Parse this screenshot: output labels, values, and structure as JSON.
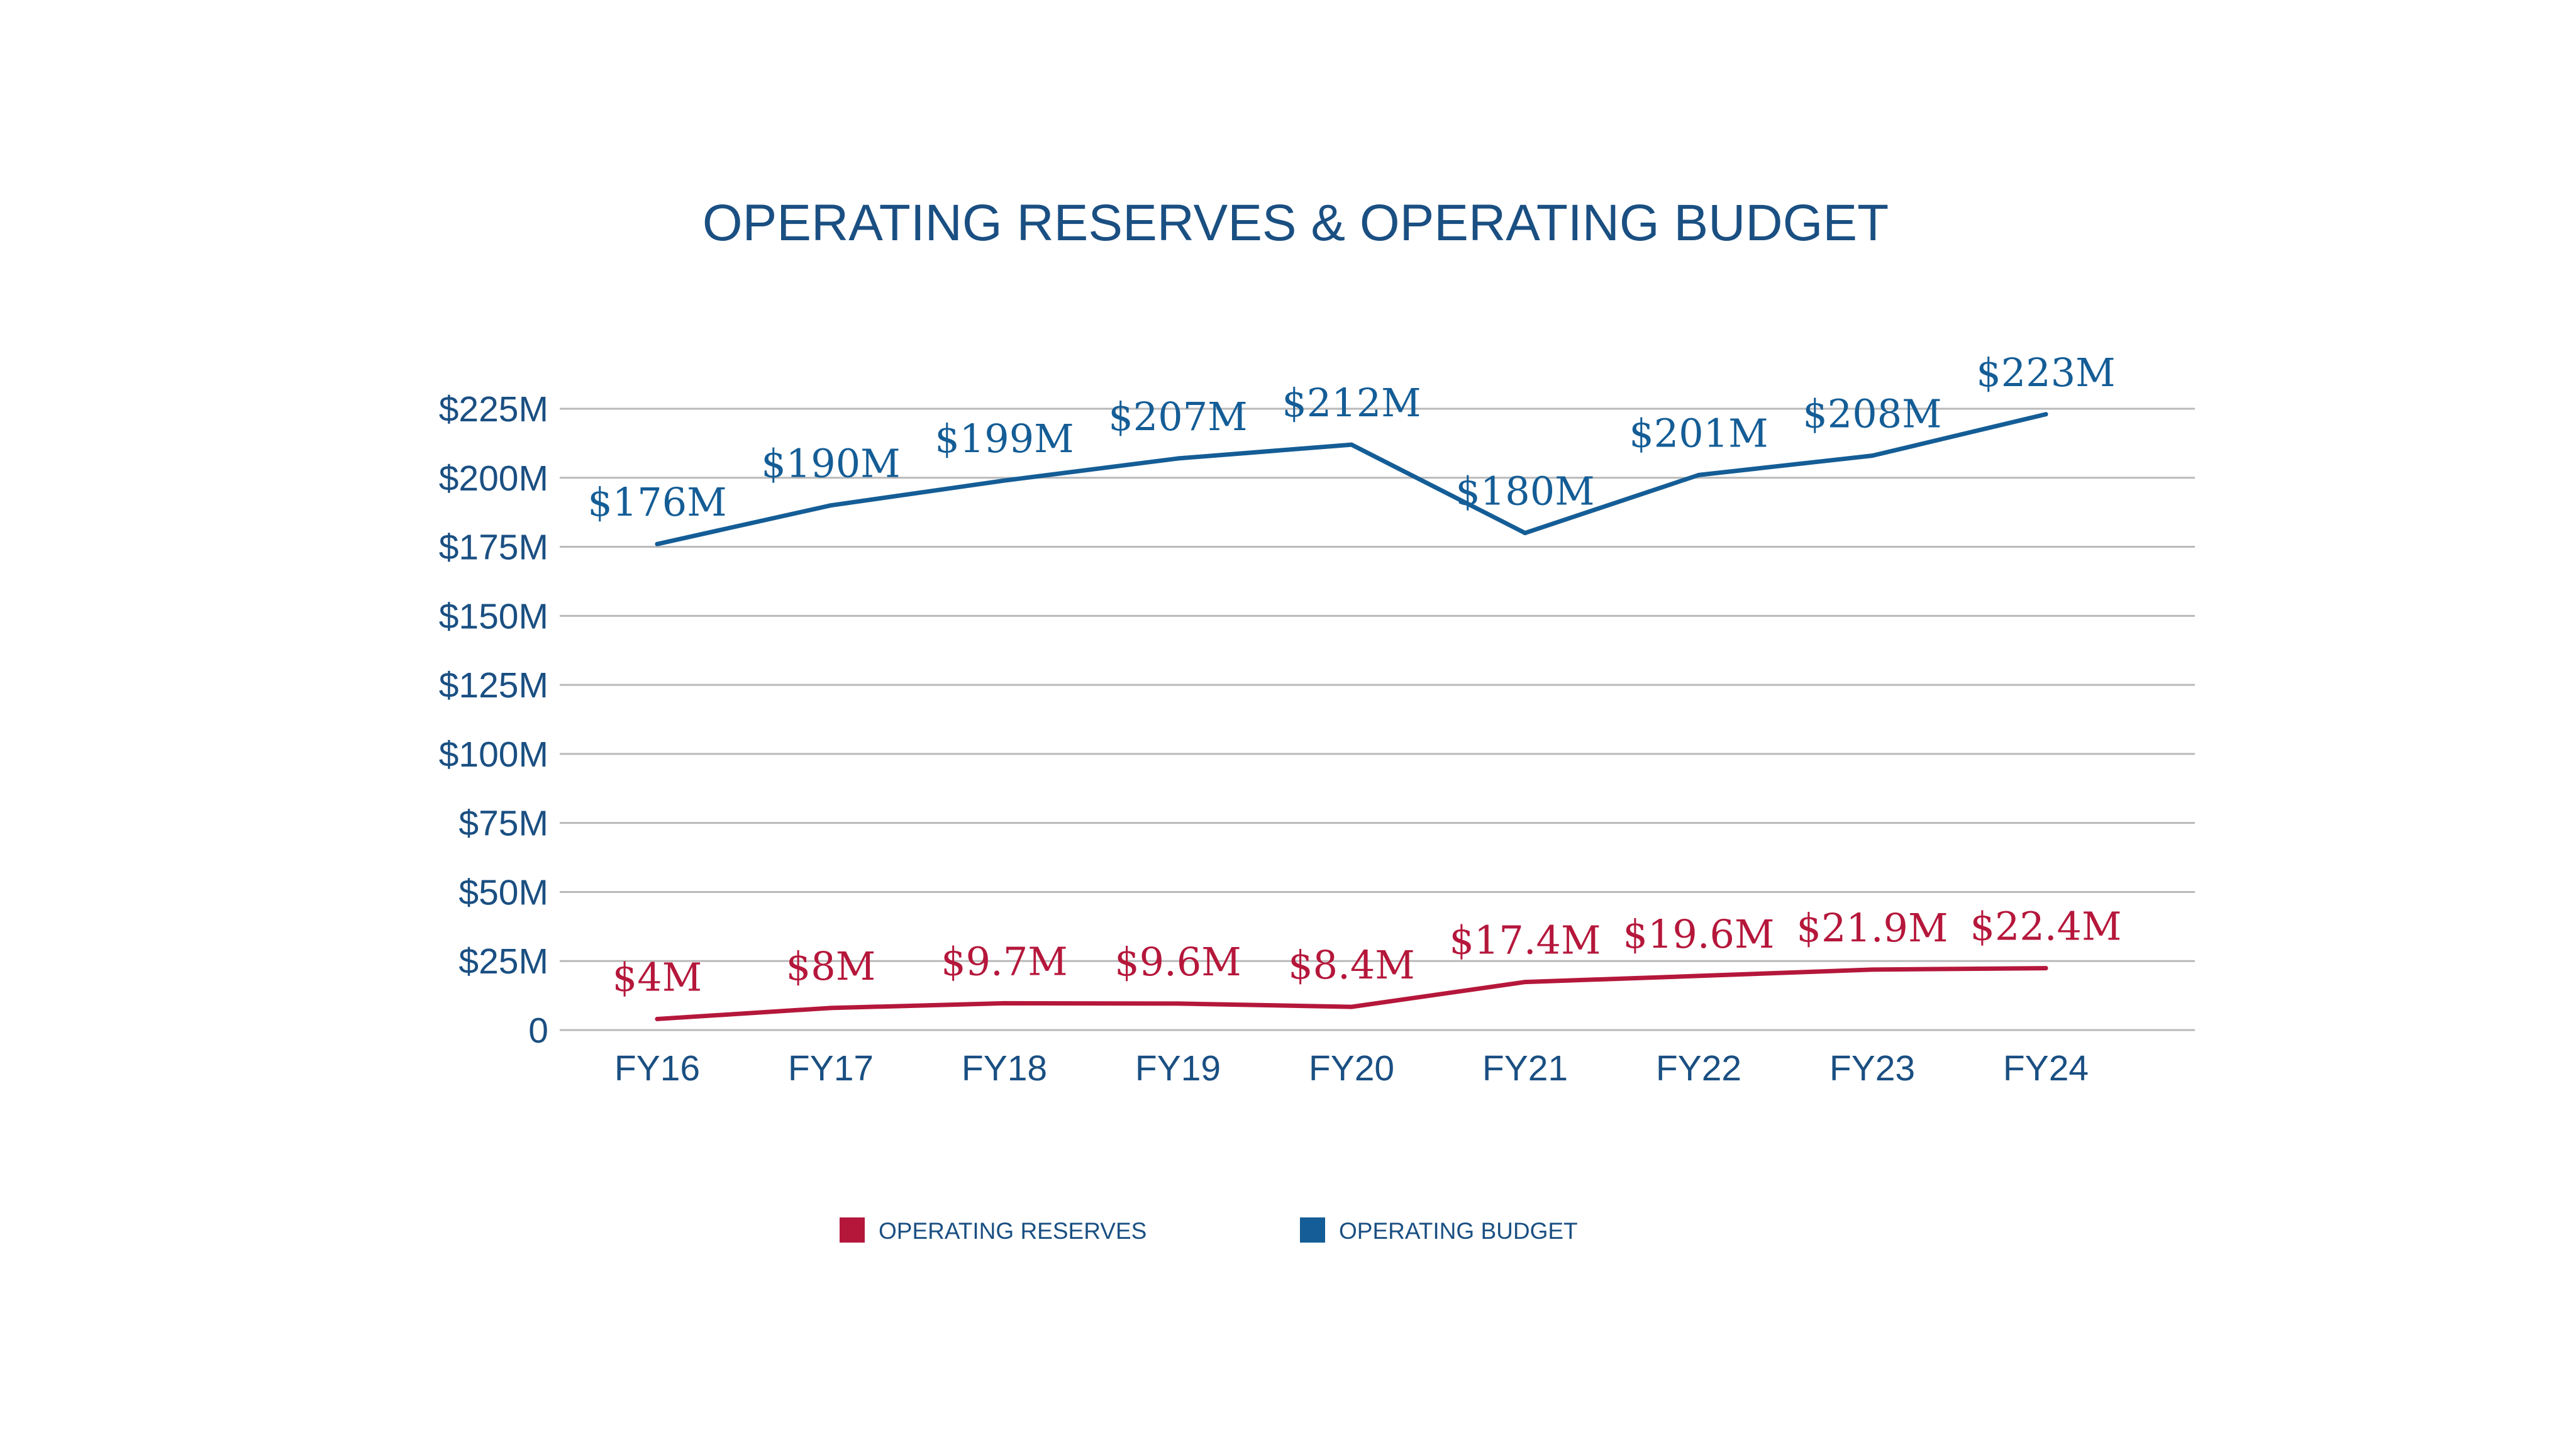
{
  "colors": {
    "operating_reserves": "#b5173b",
    "operating_budget": "#145d96",
    "text": "#1a4f82",
    "grid": "#b9b9b9"
  },
  "chart_data": {
    "type": "line",
    "title": "OPERATING RESERVES & OPERATING BUDGET",
    "categories": [
      "FY16",
      "FY17",
      "FY18",
      "FY19",
      "FY20",
      "FY21",
      "FY22",
      "FY23",
      "FY24"
    ],
    "y_ticks": [
      {
        "value": 0,
        "label": "0"
      },
      {
        "value": 25,
        "label": "$25M"
      },
      {
        "value": 50,
        "label": "$50M"
      },
      {
        "value": 75,
        "label": "$75M"
      },
      {
        "value": 100,
        "label": "$100M"
      },
      {
        "value": 125,
        "label": "$125M"
      },
      {
        "value": 150,
        "label": "$150M"
      },
      {
        "value": 175,
        "label": "$175M"
      },
      {
        "value": 200,
        "label": "$200M"
      },
      {
        "value": 225,
        "label": "$225M"
      }
    ],
    "ylim": [
      0,
      225
    ],
    "grid": true,
    "legend_position": "bottom",
    "series": [
      {
        "key": "operating_reserves",
        "name": "OPERATING RESERVES",
        "values": [
          4,
          8,
          9.7,
          9.6,
          8.4,
          17.4,
          19.6,
          21.9,
          22.4
        ],
        "labels": [
          "$4M",
          "$8M",
          "$9.7M",
          "$9.6M",
          "$8.4M",
          "$17.4M",
          "$19.6M",
          "$21.9M",
          "$22.4M"
        ]
      },
      {
        "key": "operating_budget",
        "name": "OPERATING BUDGET",
        "values": [
          176,
          190,
          199,
          207,
          212,
          180,
          201,
          208,
          223
        ],
        "labels": [
          "$176M",
          "$190M",
          "$199M",
          "$207M",
          "$212M",
          "$180M",
          "$201M",
          "$208M",
          "$223M"
        ]
      }
    ]
  }
}
